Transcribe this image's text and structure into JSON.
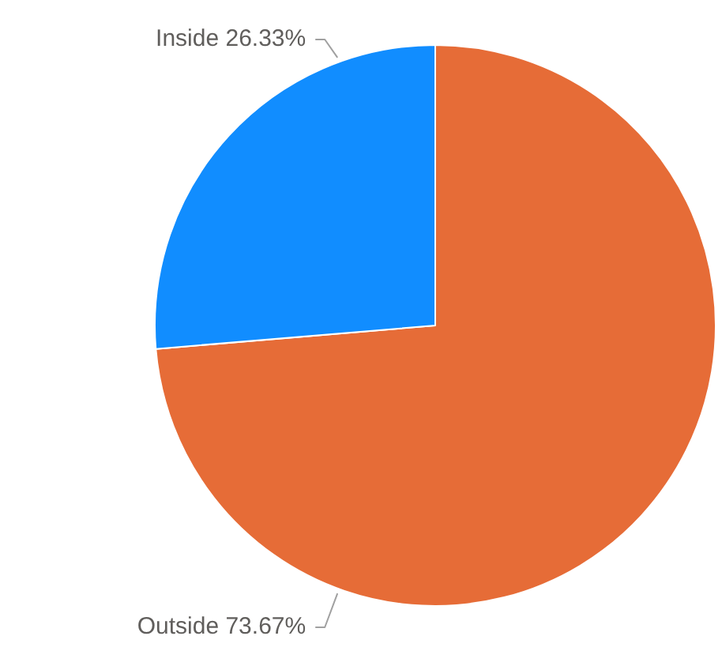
{
  "chart_data": {
    "type": "pie",
    "categories": [
      "Outside",
      "Inside"
    ],
    "values": [
      73.67,
      26.33
    ],
    "value_labels": [
      "73.67%",
      "26.33%"
    ],
    "colors": [
      "#e66c37",
      "#118dff"
    ],
    "legend": false
  }
}
